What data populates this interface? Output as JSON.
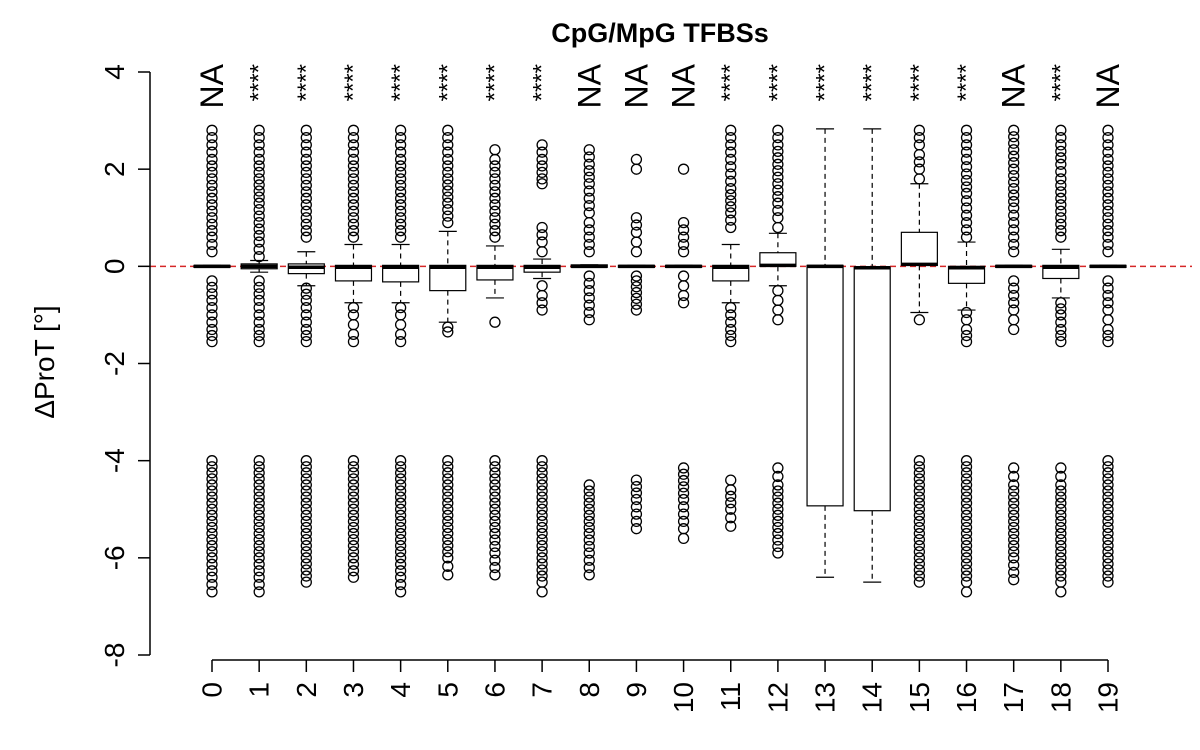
{
  "chart_data": {
    "type": "box",
    "title": "CpG/MpG TFBSs",
    "xlabel": "",
    "ylabel": "ΔProT [°]",
    "ylim": [
      -8,
      4
    ],
    "yticks": [
      -8,
      -6,
      -4,
      -2,
      0,
      2,
      4
    ],
    "categories": [
      "0",
      "1",
      "2",
      "3",
      "4",
      "5",
      "6",
      "7",
      "8",
      "9",
      "10",
      "11",
      "12",
      "13",
      "14",
      "15",
      "16",
      "17",
      "18",
      "19"
    ],
    "reference_line": {
      "y": 0,
      "color": "#d62728",
      "style": "dashed"
    },
    "significance": [
      "NA",
      "****",
      "****",
      "****",
      "****",
      "****",
      "****",
      "****",
      "NA",
      "NA",
      "NA",
      "****",
      "****",
      "****",
      "****",
      "****",
      "****",
      "NA",
      "****",
      "NA"
    ],
    "boxes": [
      {
        "q1": -0.02,
        "median": 0,
        "q3": 0.02,
        "whisker_low": -0.02,
        "whisker_high": 0.02,
        "outliers_high": [
          2.8,
          2.5,
          2.2,
          1.8,
          1.4,
          1.0,
          0.6,
          0.3
        ],
        "outliers_low": [
          -0.3,
          -0.7,
          -1.0,
          -1.3,
          -1.55
        ],
        "outliers_far": [
          -4.0,
          -4.5,
          -5.0,
          -5.5,
          -6.0,
          -6.4,
          -6.7
        ]
      },
      {
        "q1": -0.05,
        "median": 0,
        "q3": 0.05,
        "whisker_low": -0.12,
        "whisker_high": 0.12,
        "outliers_high": [
          2.8,
          2.5,
          2.2,
          1.8,
          1.3,
          0.9,
          0.5,
          0.2
        ],
        "outliers_low": [
          -0.3,
          -0.7,
          -1.0,
          -1.3,
          -1.55
        ],
        "outliers_far": [
          -4.0,
          -4.5,
          -5.0,
          -5.5,
          -6.0,
          -6.4,
          -6.7
        ]
      },
      {
        "q1": -0.15,
        "median": -0.02,
        "q3": 0.05,
        "whisker_low": -0.4,
        "whisker_high": 0.3,
        "outliers_high": [
          2.8,
          2.5,
          2.2,
          1.8,
          1.4,
          1.0,
          0.6
        ],
        "outliers_low": [
          -0.45,
          -0.7,
          -1.0,
          -1.3,
          -1.55
        ],
        "outliers_far": [
          -4.0,
          -4.5,
          -5.0,
          -5.5,
          -6.0,
          -6.5
        ]
      },
      {
        "q1": -0.3,
        "median": -0.02,
        "q3": 0.02,
        "whisker_low": -0.75,
        "whisker_high": 0.45,
        "outliers_high": [
          2.8,
          2.5,
          2.2,
          1.8,
          1.4,
          1.0,
          0.6
        ],
        "outliers_low": [
          -0.85,
          -1.0,
          -1.2,
          -1.4,
          -1.55
        ],
        "outliers_far": [
          -4.0,
          -4.5,
          -5.0,
          -5.5,
          -6.0,
          -6.4
        ]
      },
      {
        "q1": -0.32,
        "median": -0.02,
        "q3": 0.02,
        "whisker_low": -0.75,
        "whisker_high": 0.45,
        "outliers_high": [
          2.8,
          2.5,
          2.2,
          1.8,
          1.4,
          1.0,
          0.6
        ],
        "outliers_low": [
          -0.85,
          -1.0,
          -1.2,
          -1.4,
          -1.55
        ],
        "outliers_far": [
          -4.0,
          -4.5,
          -5.0,
          -5.5,
          -6.0,
          -6.4,
          -6.7
        ]
      },
      {
        "q1": -0.5,
        "median": -0.02,
        "q3": 0.02,
        "whisker_low": -1.15,
        "whisker_high": 0.72,
        "outliers_high": [
          2.8,
          2.5,
          2.2,
          1.8,
          1.3,
          0.9
        ],
        "outliers_low": [
          -1.25,
          -1.35
        ],
        "outliers_far": [
          -4.0,
          -4.5,
          -5.0,
          -5.5,
          -6.0,
          -6.35
        ]
      },
      {
        "q1": -0.28,
        "median": -0.02,
        "q3": 0.02,
        "whisker_low": -0.65,
        "whisker_high": 0.42,
        "outliers_high": [
          2.4,
          2.2,
          1.8,
          1.4,
          1.0,
          0.6
        ],
        "outliers_low": [
          -1.15
        ],
        "outliers_far": [
          -4.0,
          -4.5,
          -5.0,
          -5.5,
          -5.9,
          -6.35
        ]
      },
      {
        "q1": -0.12,
        "median": -0.02,
        "q3": 0.02,
        "whisker_low": -0.25,
        "whisker_high": 0.15,
        "outliers_high": [
          2.5,
          2.2,
          1.8,
          1.7,
          0.8,
          0.5,
          0.3
        ],
        "outliers_low": [
          -0.4,
          -0.6,
          -0.9
        ],
        "outliers_far": [
          -4.0,
          -4.5,
          -5.0,
          -5.5,
          -6.0,
          -6.5,
          -6.7
        ]
      },
      {
        "q1": -0.02,
        "median": 0,
        "q3": 0.03,
        "whisker_low": -0.02,
        "whisker_high": 0.03,
        "outliers_high": [
          2.4,
          2.1,
          1.7,
          1.1,
          0.9,
          0.6,
          0.3
        ],
        "outliers_low": [
          -0.2,
          -0.5,
          -0.8,
          -1.1
        ],
        "outliers_far": [
          -4.5,
          -5.0,
          -5.5,
          -5.9,
          -6.35
        ]
      },
      {
        "q1": -0.02,
        "median": 0,
        "q3": 0.02,
        "whisker_low": -0.02,
        "whisker_high": 0.02,
        "outliers_high": [
          2.2,
          2.0,
          1.0,
          0.7,
          0.5,
          0.3
        ],
        "outliers_low": [
          -0.2,
          -0.3,
          -0.9
        ],
        "outliers_far": [
          -4.4,
          -4.8,
          -5.1,
          -5.4
        ]
      },
      {
        "q1": -0.02,
        "median": 0,
        "q3": 0.02,
        "whisker_low": -0.02,
        "whisker_high": 0.02,
        "outliers_high": [
          2.0,
          0.9,
          0.45,
          0.3
        ],
        "outliers_low": [
          -0.2,
          -0.4,
          -0.6,
          -0.75
        ],
        "outliers_far": [
          -4.15,
          -4.8,
          -5.1,
          -5.4,
          -5.6
        ]
      },
      {
        "q1": -0.3,
        "median": -0.02,
        "q3": 0.02,
        "whisker_low": -0.75,
        "whisker_high": 0.45,
        "outliers_high": [
          2.8,
          2.5,
          2.2,
          1.9,
          1.6,
          1.1,
          0.8
        ],
        "outliers_low": [
          -0.85,
          -1.0,
          -1.3,
          -1.55
        ],
        "outliers_far": [
          -4.4,
          -4.6,
          -5.0,
          -5.35
        ]
      },
      {
        "q1": 0.0,
        "median": 0.02,
        "q3": 0.28,
        "whisker_low": -0.4,
        "whisker_high": 0.68,
        "outliers_high": [
          2.8,
          2.5,
          2.1,
          1.7,
          1.3,
          1.0,
          0.8
        ],
        "outliers_low": [
          -0.5,
          -0.7,
          -0.9,
          -1.1
        ],
        "outliers_far": [
          -4.15,
          -4.5,
          -5.0,
          -5.5,
          -5.9
        ]
      },
      {
        "q1": -4.93,
        "median": 0.0,
        "q3": 0.02,
        "whisker_low": -6.4,
        "whisker_high": 2.83,
        "outliers_high": [],
        "outliers_low": [],
        "outliers_far": []
      },
      {
        "q1": -5.03,
        "median": -0.03,
        "q3": -0.02,
        "whisker_low": -6.5,
        "whisker_high": 2.83,
        "outliers_high": [],
        "outliers_low": [],
        "outliers_far": []
      },
      {
        "q1": 0.02,
        "median": 0.04,
        "q3": 0.7,
        "whisker_low": -0.95,
        "whisker_high": 1.7,
        "outliers_high": [
          2.8,
          2.5,
          2.3,
          2.0,
          1.8
        ],
        "outliers_low": [
          -1.1
        ],
        "outliers_far": [
          -4.0,
          -4.5,
          -5.0,
          -5.5,
          -6.0,
          -6.5
        ]
      },
      {
        "q1": -0.35,
        "median": -0.03,
        "q3": 0.0,
        "whisker_low": -0.9,
        "whisker_high": 0.5,
        "outliers_high": [
          2.8,
          2.5,
          2.2,
          1.9,
          1.5,
          1.2,
          0.9,
          0.6
        ],
        "outliers_low": [
          -0.95,
          -1.1,
          -1.3,
          -1.55
        ],
        "outliers_far": [
          -4.0,
          -4.5,
          -5.0,
          -5.5,
          -6.0,
          -6.5,
          -6.7
        ]
      },
      {
        "q1": -0.02,
        "median": 0,
        "q3": 0.02,
        "whisker_low": -0.02,
        "whisker_high": 0.02,
        "outliers_high": [
          2.8,
          2.4,
          2.0,
          1.6,
          1.2,
          0.9,
          0.6,
          0.3
        ],
        "outliers_low": [
          -0.3,
          -0.6,
          -0.9,
          -1.1,
          -1.3
        ],
        "outliers_far": [
          -4.15,
          -4.5,
          -5.0,
          -5.5,
          -6.0,
          -6.45
        ]
      },
      {
        "q1": -0.25,
        "median": -0.02,
        "q3": 0.02,
        "whisker_low": -0.65,
        "whisker_high": 0.35,
        "outliers_high": [
          2.8,
          2.5,
          2.1,
          1.8,
          1.4,
          1.0,
          0.6
        ],
        "outliers_low": [
          -0.75,
          -1.0,
          -1.3,
          -1.55
        ],
        "outliers_far": [
          -4.15,
          -4.5,
          -5.0,
          -5.5,
          -6.0,
          -6.5,
          -6.7
        ]
      },
      {
        "q1": -0.02,
        "median": 0,
        "q3": 0.02,
        "whisker_low": -0.02,
        "whisker_high": 0.02,
        "outliers_high": [
          2.8,
          2.5,
          2.2,
          1.8,
          1.4,
          1.0,
          0.6,
          0.3
        ],
        "outliers_low": [
          -0.3,
          -0.6,
          -0.9,
          -1.1,
          -1.3,
          -1.55
        ],
        "outliers_far": [
          -4.0,
          -4.5,
          -5.0,
          -5.5,
          -6.0,
          -6.5
        ]
      }
    ]
  }
}
